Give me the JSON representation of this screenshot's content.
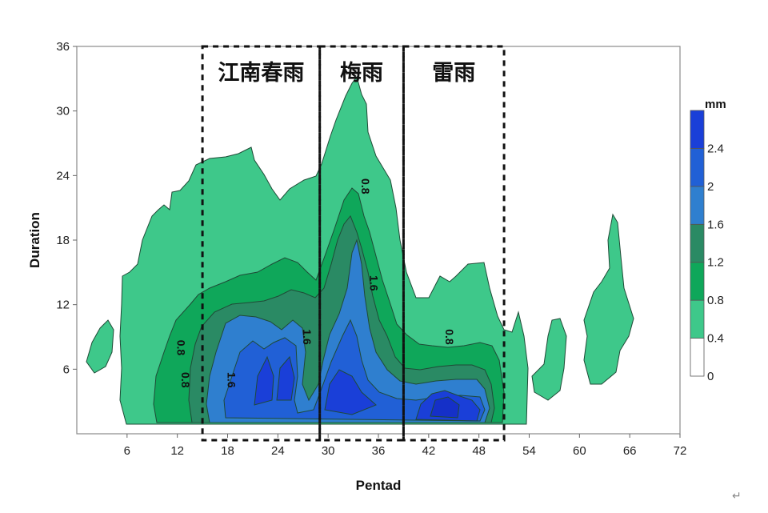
{
  "chart_data": {
    "type": "contour",
    "xlabel": "Pentad",
    "ylabel": "Duration",
    "xlim": [
      0,
      72
    ],
    "ylim": [
      0,
      36
    ],
    "xticks": [
      6,
      12,
      18,
      24,
      30,
      36,
      42,
      48,
      54,
      60,
      66,
      72
    ],
    "yticks": [
      6,
      12,
      18,
      24,
      30,
      36
    ],
    "colorbar": {
      "unit": "mm",
      "levels": [
        0,
        0.4,
        0.8,
        1.2,
        1.6,
        2,
        2.4
      ],
      "level_labels": [
        "0",
        "0.4",
        "0.8",
        "1.2",
        "1.6",
        "2",
        "2.4"
      ],
      "colors": [
        "#ffffff",
        "#3ec88a",
        "#0fa75a",
        "#2a8a64",
        "#2f7fcf",
        "#2160d6",
        "#1a3fd8",
        "#1530c8"
      ]
    },
    "periods": [
      {
        "name": "江南春雨",
        "x_range": [
          15,
          29
        ]
      },
      {
        "name": "梅雨",
        "x_range": [
          29,
          39
        ]
      },
      {
        "name": "雷雨",
        "x_range": [
          39,
          51
        ]
      }
    ],
    "contour_labels": [
      {
        "text": "0.8",
        "x": 12,
        "y": 8
      },
      {
        "text": "0.8",
        "x": 12.5,
        "y": 5
      },
      {
        "text": "1.6",
        "x": 18,
        "y": 5
      },
      {
        "text": "1.6",
        "x": 27,
        "y": 9
      },
      {
        "text": "0.8",
        "x": 34,
        "y": 23
      },
      {
        "text": "1.6",
        "x": 35,
        "y": 14
      },
      {
        "text": "0.8",
        "x": 44,
        "y": 9
      }
    ],
    "field_summary": {
      "max_region": {
        "x": [
          41,
          48
        ],
        "y": [
          1,
          5
        ],
        "value": 2.4
      },
      "secondary_maxima": [
        {
          "x": [
            19,
            28
          ],
          "y": [
            2,
            11
          ],
          "value": 2.0
        },
        {
          "x": [
            30,
            38
          ],
          "y": [
            2,
            18
          ],
          "value": 2.0
        }
      ]
    }
  },
  "footer_mark": "↵"
}
